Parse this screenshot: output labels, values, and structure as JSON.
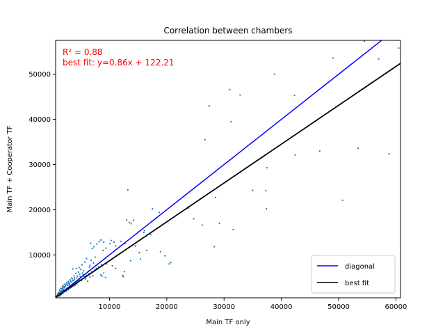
{
  "chart_data": {
    "type": "scatter",
    "title": "Correlation between chambers",
    "xlabel": "Main TF only",
    "ylabel": "Main TF + Cooperator TF",
    "xlim": [
      600,
      60800
    ],
    "ylim": [
      500,
      57500
    ],
    "x_ticks": [
      10000,
      20000,
      30000,
      40000,
      50000,
      60000
    ],
    "y_ticks": [
      10000,
      20000,
      30000,
      40000,
      50000
    ],
    "annotations": [
      {
        "text": "R² = 0.88",
        "color": "#ff0000"
      },
      {
        "text": "best fit: y=0.86x + 122.21",
        "color": "#ff0000"
      }
    ],
    "lines": [
      {
        "name": "diagonal",
        "color": "#0000ff",
        "slope": 1,
        "intercept": 0
      },
      {
        "name": "best fit",
        "color": "#000000",
        "slope": 0.86,
        "intercept": 122.21
      }
    ],
    "legend_placement": "lower-right",
    "point_color": "#1f77b4",
    "grid": false,
    "points": [
      [
        54500,
        57300
      ],
      [
        60500,
        55800
      ],
      [
        49000,
        53600
      ],
      [
        57000,
        53400
      ],
      [
        38800,
        50000
      ],
      [
        31000,
        46600
      ],
      [
        32800,
        45400
      ],
      [
        42300,
        45300
      ],
      [
        27400,
        43000
      ],
      [
        31200,
        39500
      ],
      [
        26700,
        35500
      ],
      [
        53400,
        33600
      ],
      [
        46700,
        33000
      ],
      [
        58800,
        32400
      ],
      [
        42400,
        32100
      ],
      [
        37500,
        29300
      ],
      [
        50700,
        22100
      ],
      [
        35000,
        24300
      ],
      [
        37300,
        24200
      ],
      [
        37400,
        20200
      ],
      [
        13200,
        24400
      ],
      [
        17500,
        20200
      ],
      [
        18700,
        19400
      ],
      [
        23800,
        20400
      ],
      [
        28500,
        22700
      ],
      [
        24700,
        18000
      ],
      [
        29200,
        17000
      ],
      [
        26200,
        16600
      ],
      [
        31600,
        15600
      ],
      [
        13000,
        17700
      ],
      [
        13500,
        17200
      ],
      [
        14200,
        17700
      ],
      [
        13800,
        16900
      ],
      [
        16100,
        15400
      ],
      [
        16000,
        15000
      ],
      [
        17200,
        14500
      ],
      [
        12000,
        13000
      ],
      [
        12700,
        12500
      ],
      [
        10300,
        13200
      ],
      [
        10800,
        12800
      ],
      [
        10100,
        12500
      ],
      [
        11100,
        12000
      ],
      [
        8500,
        13300
      ],
      [
        8200,
        12900
      ],
      [
        7800,
        12400
      ],
      [
        6700,
        12600
      ],
      [
        9000,
        12800
      ],
      [
        7300,
        11800
      ],
      [
        9400,
        11500
      ],
      [
        8900,
        11000
      ],
      [
        7000,
        11400
      ],
      [
        14500,
        12000
      ],
      [
        16500,
        11000
      ],
      [
        18900,
        10700
      ],
      [
        15200,
        10500
      ],
      [
        19700,
        9800
      ],
      [
        13700,
        8700
      ],
      [
        15400,
        9100
      ],
      [
        20400,
        8000
      ],
      [
        20700,
        8300
      ],
      [
        28300,
        11800
      ],
      [
        12600,
        6300
      ],
      [
        12300,
        5500
      ],
      [
        12400,
        5200
      ],
      [
        9500,
        8000
      ],
      [
        10500,
        7600
      ],
      [
        11100,
        7000
      ],
      [
        9000,
        6000
      ],
      [
        8500,
        5600
      ],
      [
        8700,
        5300
      ],
      [
        9300,
        5000
      ],
      [
        7500,
        9500
      ],
      [
        6800,
        8800
      ],
      [
        6000,
        9200
      ],
      [
        5700,
        8400
      ],
      [
        5200,
        7800
      ],
      [
        4700,
        7200
      ],
      [
        4200,
        7000
      ],
      [
        3600,
        6900
      ],
      [
        6500,
        7300
      ],
      [
        6300,
        6400
      ],
      [
        5900,
        5900
      ],
      [
        5400,
        5600
      ],
      [
        4900,
        5200
      ],
      [
        4400,
        5300
      ],
      [
        3900,
        5000
      ],
      [
        3500,
        4700
      ],
      [
        3200,
        4200
      ],
      [
        2900,
        3800
      ],
      [
        4600,
        4400
      ],
      [
        5100,
        4300
      ],
      [
        5800,
        4700
      ],
      [
        6200,
        4200
      ],
      [
        6600,
        5100
      ],
      [
        7100,
        5400
      ],
      [
        2600,
        3600
      ],
      [
        2300,
        3100
      ],
      [
        2100,
        2700
      ],
      [
        1900,
        2400
      ],
      [
        1700,
        2100
      ],
      [
        1500,
        1800
      ],
      [
        1300,
        1500
      ],
      [
        1200,
        1300
      ],
      [
        1100,
        1200
      ],
      [
        1000,
        1000
      ],
      [
        900,
        900
      ],
      [
        950,
        1100
      ],
      [
        1050,
        900
      ],
      [
        1150,
        1000
      ],
      [
        1250,
        1100
      ],
      [
        1350,
        1250
      ],
      [
        1450,
        1400
      ],
      [
        1600,
        1500
      ],
      [
        1750,
        1650
      ],
      [
        1850,
        1750
      ],
      [
        2000,
        1900
      ],
      [
        2150,
        2050
      ],
      [
        2250,
        2150
      ],
      [
        2400,
        2300
      ],
      [
        2550,
        2450
      ],
      [
        2700,
        2600
      ],
      [
        2850,
        2750
      ],
      [
        3000,
        2900
      ],
      [
        3150,
        3050
      ],
      [
        3300,
        3200
      ],
      [
        3450,
        3350
      ],
      [
        3600,
        3500
      ],
      [
        3750,
        3650
      ],
      [
        3900,
        3800
      ],
      [
        4050,
        3950
      ],
      [
        4200,
        4100
      ],
      [
        4350,
        4250
      ],
      [
        4500,
        4400
      ],
      [
        4650,
        4550
      ],
      [
        4800,
        4700
      ],
      [
        1100,
        1600
      ],
      [
        1400,
        2000
      ],
      [
        1700,
        2500
      ],
      [
        2000,
        3000
      ],
      [
        2400,
        3400
      ],
      [
        2800,
        4100
      ],
      [
        3100,
        4500
      ],
      [
        3400,
        4900
      ],
      [
        3800,
        5400
      ],
      [
        4100,
        5900
      ],
      [
        1600,
        1200
      ],
      [
        1900,
        1500
      ],
      [
        2200,
        1800
      ],
      [
        2500,
        2000
      ],
      [
        2800,
        2300
      ],
      [
        3100,
        2600
      ],
      [
        3400,
        2800
      ],
      [
        3700,
        3100
      ],
      [
        4000,
        3300
      ],
      [
        4300,
        3600
      ],
      [
        1300,
        2200
      ],
      [
        1500,
        2600
      ],
      [
        1800,
        3100
      ],
      [
        2100,
        3500
      ],
      [
        2500,
        3900
      ],
      [
        2700,
        3300
      ],
      [
        3000,
        3600
      ],
      [
        3300,
        4000
      ],
      [
        3600,
        4300
      ],
      [
        3900,
        4600
      ],
      [
        4600,
        6200
      ],
      [
        5000,
        6800
      ],
      [
        5500,
        6500
      ],
      [
        5300,
        6000
      ],
      [
        4800,
        5700
      ],
      [
        4300,
        4900
      ],
      [
        3700,
        4300
      ],
      [
        3000,
        3400
      ],
      [
        2200,
        2900
      ],
      [
        1800,
        2700
      ],
      [
        1000,
        1400
      ],
      [
        1200,
        1700
      ],
      [
        1400,
        1100
      ],
      [
        1600,
        1300
      ],
      [
        800,
        800
      ],
      [
        850,
        1000
      ],
      [
        1000,
        800
      ],
      [
        1300,
        900
      ],
      [
        1600,
        1800
      ],
      [
        2000,
        2200
      ],
      [
        5600,
        5200
      ],
      [
        6000,
        5500
      ],
      [
        6400,
        5800
      ],
      [
        6900,
        6200
      ],
      [
        7400,
        6600
      ],
      [
        7700,
        7000
      ],
      [
        8100,
        7400
      ],
      [
        8600,
        7800
      ],
      [
        7200,
        8200
      ],
      [
        6600,
        7700
      ]
    ]
  }
}
